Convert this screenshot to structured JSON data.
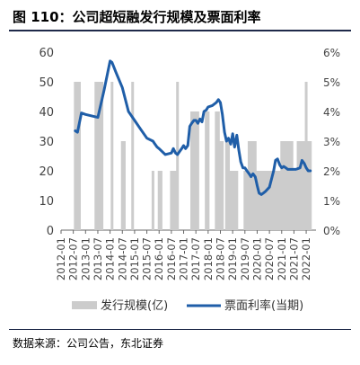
{
  "title": "图 110：公司超短融发行规模及票面利率",
  "source": "数据来源：公司公告，东北证券",
  "colors": {
    "bar": "#cccccc",
    "line": "#1f5ea8",
    "axis": "#666666"
  },
  "chart_data": {
    "type": "bar+line",
    "x_tick_labels": [
      "2012-01",
      "2012-07",
      "2013-01",
      "2013-07",
      "2014-01",
      "2014-07",
      "2015-01",
      "2015-07",
      "2016-01",
      "2016-07",
      "2017-01",
      "2017-07",
      "2018-01",
      "2018-07",
      "2019-01",
      "2019-07",
      "2020-01",
      "2020-07",
      "2021-01",
      "2021-07",
      "2022-01"
    ],
    "x_range": [
      2012.0,
      2022.4
    ],
    "y_left": {
      "ticks": [
        "0",
        "10",
        "20",
        "30",
        "40",
        "50",
        "60"
      ],
      "range": [
        0,
        60
      ]
    },
    "y_right": {
      "ticks": [
        "0%",
        "1%",
        "2%",
        "3%",
        "4%",
        "5%",
        "6%"
      ],
      "range": [
        0,
        6
      ]
    },
    "legend": {
      "position": "bottom",
      "entries": [
        "发行规模(亿)",
        "票面利率(当期)"
      ]
    },
    "series": [
      {
        "name": "发行规模(亿)",
        "type": "bar",
        "axis": "left",
        "x": [
          2012.58,
          2012.67,
          2012.75,
          2013.42,
          2013.5,
          2013.58,
          2013.67,
          2014.08,
          2014.5,
          2014.58,
          2014.92,
          2015.75,
          2016.0,
          2016.08,
          2016.5,
          2016.58,
          2016.67,
          2016.75,
          2017.33,
          2017.42,
          2017.5,
          2017.58,
          2017.92,
          2018.0,
          2018.33,
          2018.42,
          2018.5,
          2018.58,
          2018.75,
          2018.83,
          2018.92,
          2019.0,
          2019.08,
          2019.17,
          2019.5,
          2019.58,
          2019.67,
          2019.75,
          2019.83,
          2019.92,
          2020.0,
          2020.08,
          2020.17,
          2020.25,
          2020.33,
          2020.42,
          2020.5,
          2020.58,
          2020.67,
          2020.75,
          2020.83,
          2020.92,
          2021.0,
          2021.08,
          2021.17,
          2021.25,
          2021.33,
          2021.42,
          2021.5,
          2021.58,
          2021.67,
          2021.75,
          2021.83,
          2021.92,
          2022.0,
          2022.08,
          2022.17
        ],
        "values": [
          50,
          50,
          50,
          50,
          50,
          50,
          50,
          50,
          30,
          30,
          50,
          20,
          20,
          20,
          20,
          20,
          20,
          50,
          40,
          40,
          40,
          40,
          40,
          40,
          40,
          40,
          30,
          30,
          30,
          30,
          20,
          20,
          20,
          20,
          20,
          20,
          30,
          30,
          30,
          30,
          20,
          20,
          20,
          20,
          20,
          20,
          20,
          20,
          20,
          20,
          20,
          20,
          30,
          30,
          30,
          30,
          30,
          30,
          20,
          20,
          30,
          30,
          30,
          30,
          50,
          30,
          30
        ]
      },
      {
        "name": "票面利率(当期)",
        "type": "line",
        "axis": "right",
        "x": [
          2012.58,
          2012.67,
          2012.83,
          2013.0,
          2013.25,
          2013.5,
          2013.75,
          2014.0,
          2014.08,
          2014.25,
          2014.5,
          2014.75,
          2015.0,
          2015.25,
          2015.5,
          2015.75,
          2015.83,
          2015.92,
          2016.0,
          2016.25,
          2016.5,
          2016.58,
          2016.67,
          2016.75,
          2016.92,
          2017.0,
          2017.08,
          2017.17,
          2017.25,
          2017.33,
          2017.42,
          2017.5,
          2017.58,
          2017.67,
          2017.75,
          2017.83,
          2017.92,
          2018.0,
          2018.17,
          2018.33,
          2018.42,
          2018.5,
          2018.58,
          2018.67,
          2018.75,
          2018.83,
          2018.92,
          2019.0,
          2019.08,
          2019.17,
          2019.25,
          2019.33,
          2019.42,
          2019.5,
          2019.58,
          2019.67,
          2019.75,
          2019.83,
          2019.92,
          2020.0,
          2020.08,
          2020.17,
          2020.25,
          2020.33,
          2020.5,
          2020.67,
          2020.75,
          2020.83,
          2020.92,
          2021.0,
          2021.08,
          2021.17,
          2021.25,
          2021.42,
          2021.58,
          2021.75,
          2021.83,
          2021.92,
          2022.0,
          2022.08,
          2022.17
        ],
        "values": [
          3.35,
          3.3,
          3.95,
          3.9,
          3.85,
          3.8,
          4.7,
          5.7,
          5.65,
          5.3,
          4.8,
          4.0,
          3.7,
          3.4,
          3.1,
          3.0,
          2.9,
          2.8,
          2.75,
          2.55,
          2.6,
          2.75,
          2.6,
          2.55,
          2.75,
          2.85,
          2.75,
          2.85,
          3.5,
          3.6,
          3.7,
          3.7,
          3.6,
          3.75,
          3.65,
          4.0,
          4.05,
          4.15,
          4.2,
          4.3,
          4.4,
          4.3,
          3.9,
          3.3,
          3.0,
          3.1,
          2.9,
          3.25,
          2.8,
          3.2,
          2.7,
          2.3,
          2.1,
          2.1,
          2.0,
          1.9,
          1.8,
          1.9,
          1.8,
          1.5,
          1.25,
          1.2,
          1.25,
          1.3,
          1.45,
          2.0,
          2.35,
          2.4,
          2.2,
          2.1,
          2.15,
          2.1,
          2.05,
          2.05,
          2.05,
          2.1,
          2.35,
          2.25,
          2.1,
          2.0,
          2.0
        ]
      }
    ]
  }
}
